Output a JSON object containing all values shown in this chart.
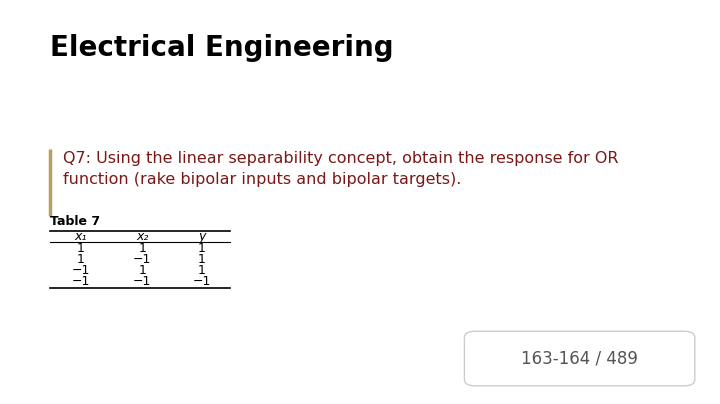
{
  "title": "Electrical Engineering",
  "question_text_line1": "Q7: Using the linear separability concept, obtain the response for OR",
  "question_text_line2": "function (rake bipolar inputs and bipolar targets).",
  "table_title": "Table 7",
  "table_headers": [
    "x₁",
    "x₂",
    "y"
  ],
  "table_rows": [
    [
      "1",
      "1",
      "1"
    ],
    [
      "1",
      "−1",
      "1"
    ],
    [
      "−1",
      "1",
      "1"
    ],
    [
      "−1",
      "−1",
      "−1"
    ]
  ],
  "page_label": "163-164 / 489",
  "background_color": "#ffffff",
  "title_color": "#000000",
  "question_color": "#7B1818",
  "table_header_color": "#000000",
  "table_data_color": "#000000",
  "page_label_color": "#555555",
  "bar_left_color": "#b8a060",
  "title_fontsize": 20,
  "question_fontsize": 11.5,
  "table_title_fontsize": 9,
  "table_content_fontsize": 9,
  "page_label_fontsize": 12
}
